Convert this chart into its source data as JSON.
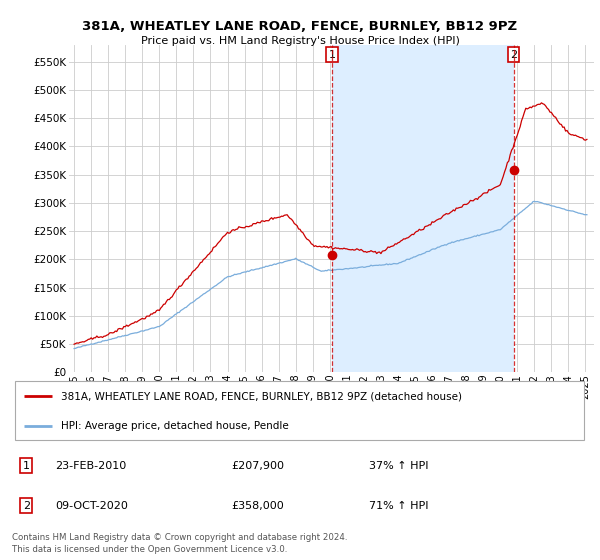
{
  "title": "381A, WHEATLEY LANE ROAD, FENCE, BURNLEY, BB12 9PZ",
  "subtitle": "Price paid vs. HM Land Registry's House Price Index (HPI)",
  "legend_label_red": "381A, WHEATLEY LANE ROAD, FENCE, BURNLEY, BB12 9PZ (detached house)",
  "legend_label_blue": "HPI: Average price, detached house, Pendle",
  "annotation1_date": "23-FEB-2010",
  "annotation1_price": "£207,900",
  "annotation1_hpi": "37% ↑ HPI",
  "annotation2_date": "09-OCT-2020",
  "annotation2_price": "£358,000",
  "annotation2_hpi": "71% ↑ HPI",
  "footer": "Contains HM Land Registry data © Crown copyright and database right 2024.\nThis data is licensed under the Open Government Licence v3.0.",
  "ylim": [
    0,
    580000
  ],
  "yticks": [
    0,
    50000,
    100000,
    150000,
    200000,
    250000,
    300000,
    350000,
    400000,
    450000,
    500000,
    550000
  ],
  "red_color": "#cc0000",
  "blue_color": "#7aaddc",
  "shade_color": "#ddeeff",
  "background_color": "#ffffff",
  "grid_color": "#cccccc",
  "sale1_x": 2010.12,
  "sale1_y": 207900,
  "sale2_x": 2020.78,
  "sale2_y": 358000,
  "xmin": 1994.7,
  "xmax": 2025.5,
  "xtick_years": [
    "1995",
    "1996",
    "1997",
    "1998",
    "1999",
    "2000",
    "2001",
    "2002",
    "2003",
    "2004",
    "2005",
    "2006",
    "2007",
    "2008",
    "2009",
    "2010",
    "2011",
    "2012",
    "2013",
    "2014",
    "2015",
    "2016",
    "2017",
    "2018",
    "2019",
    "2020",
    "2021",
    "2022",
    "2023",
    "2024",
    "2025"
  ]
}
